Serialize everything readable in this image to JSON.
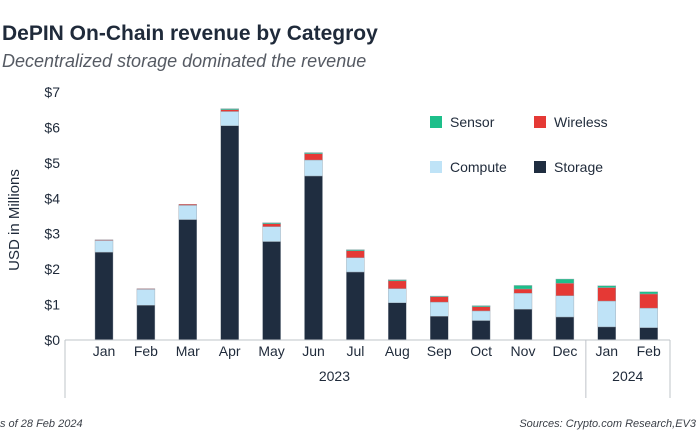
{
  "title": "DePIN On-Chain revenue by Categroy",
  "subtitle": "Decentralized storage dominated the revenue",
  "footnote": "s of 28 Feb 2024",
  "sources": "Sources: Crypto.com Research,EV3",
  "chart_data": {
    "type": "bar",
    "stacked": true,
    "ylabel": "USD in Millions",
    "ylim": [
      0,
      7
    ],
    "yticks": [
      "$0",
      "$1",
      "$2",
      "$3",
      "$4",
      "$5",
      "$6",
      "$7"
    ],
    "categories": [
      "Jan",
      "Feb",
      "Mar",
      "Apr",
      "May",
      "Jun",
      "Jul",
      "Aug",
      "Sep",
      "Oct",
      "Nov",
      "Dec",
      "Jan",
      "Feb"
    ],
    "year_groups": [
      {
        "label": "2023",
        "start": 0,
        "end": 11
      },
      {
        "label": "2024",
        "start": 12,
        "end": 13
      }
    ],
    "series": [
      {
        "name": "Storage",
        "color": "#1f2d40",
        "values": [
          2.48,
          0.98,
          3.4,
          6.05,
          2.78,
          4.63,
          1.92,
          1.05,
          0.67,
          0.55,
          0.87,
          0.65,
          0.37,
          0.35
        ]
      },
      {
        "name": "Compute",
        "color": "#bfe3f7",
        "values": [
          0.33,
          0.45,
          0.4,
          0.4,
          0.42,
          0.45,
          0.4,
          0.4,
          0.4,
          0.27,
          0.45,
          0.6,
          0.73,
          0.55
        ]
      },
      {
        "name": "Wireless",
        "color": "#e53935",
        "values": [
          0.02,
          0.02,
          0.03,
          0.05,
          0.08,
          0.18,
          0.2,
          0.22,
          0.15,
          0.12,
          0.12,
          0.35,
          0.38,
          0.4
        ]
      },
      {
        "name": "Sensor",
        "color": "#1dbf8a",
        "values": [
          0.0,
          0.0,
          0.0,
          0.03,
          0.03,
          0.03,
          0.03,
          0.03,
          0.02,
          0.03,
          0.1,
          0.12,
          0.05,
          0.06
        ]
      }
    ],
    "legend": {
      "placement": "top-right",
      "order": [
        "Sensor",
        "Wireless",
        "Compute",
        "Storage"
      ]
    },
    "grid": false
  }
}
